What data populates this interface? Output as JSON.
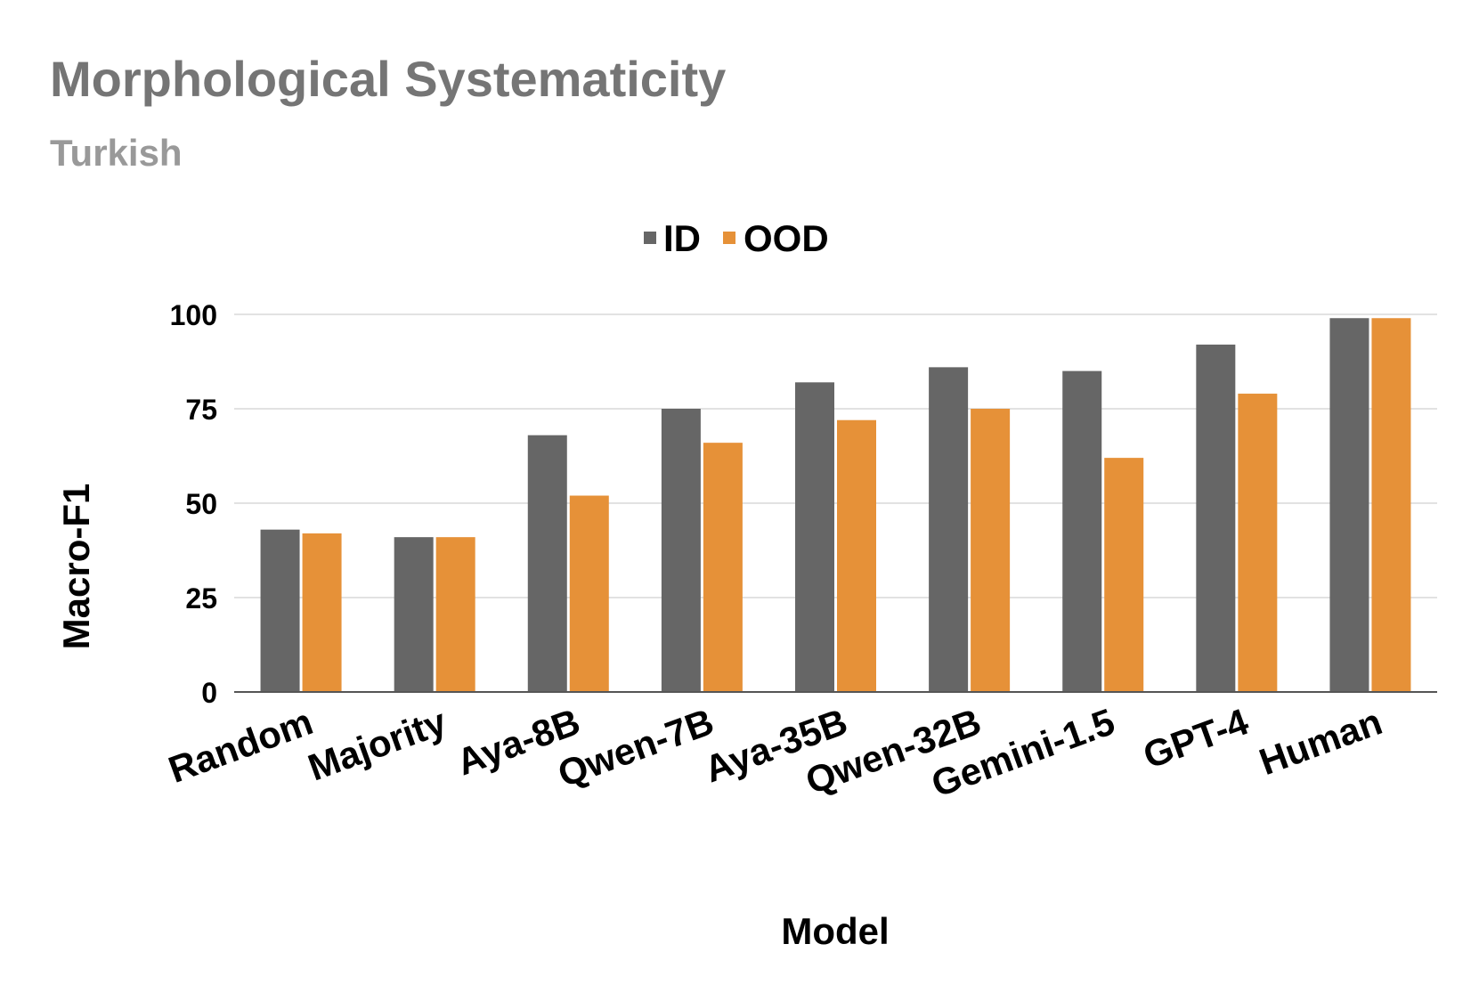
{
  "chart_data": {
    "type": "bar",
    "title": "Morphological Systematicity",
    "subtitle": "Turkish",
    "xlabel": "Model",
    "ylabel": "Macro-F1",
    "categories": [
      "Random",
      "Majority",
      "Aya-8B",
      "Qwen-7B",
      "Aya-35B",
      "Qwen-32B",
      "Gemini-1.5",
      "GPT-4",
      "Human"
    ],
    "series": [
      {
        "name": "ID",
        "color": "#666666",
        "values": [
          43,
          41,
          68,
          75,
          82,
          86,
          85,
          92,
          99
        ]
      },
      {
        "name": "OOD",
        "color": "#E69138",
        "values": [
          42,
          41,
          52,
          66,
          72,
          75,
          62,
          79,
          99
        ]
      }
    ],
    "ylim": [
      0,
      100
    ],
    "yticks": [
      0,
      25,
      50,
      75,
      100
    ],
    "grid": true,
    "legend_position": "top-center"
  }
}
